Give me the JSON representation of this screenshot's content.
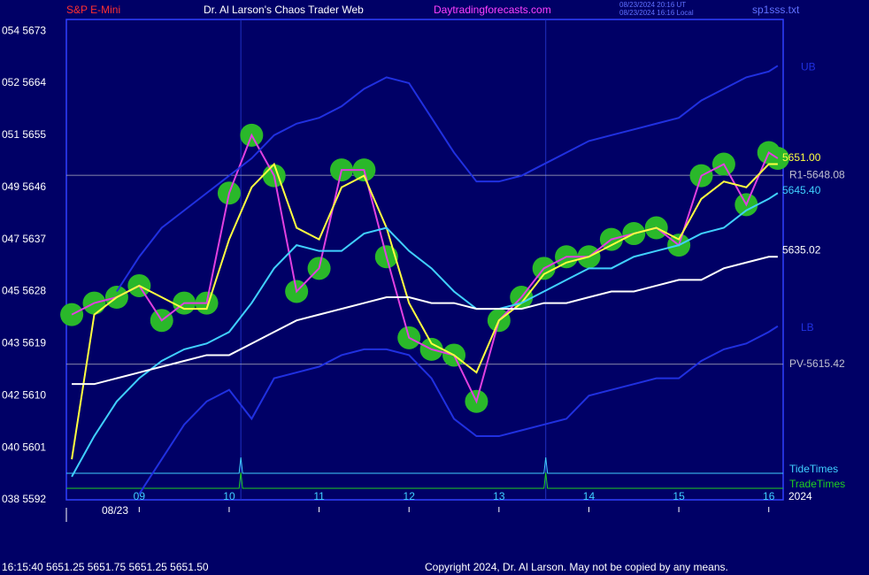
{
  "chart_data": {
    "type": "line",
    "header": {
      "symbol": "S&P E-Mini",
      "title": "Dr. Al Larson's Chaos Trader Web",
      "site": "Daytradingforecasts.com",
      "time_ut": "08/23/2024 20:16 UT",
      "time_local": "08/23/2024 16:16 Local",
      "file": "sp1sss.txt"
    },
    "footer": {
      "quote": "16:15:40  5651.25 5651.75 5651.25 5651.50",
      "copyright": "Copyright 2024, Dr. Al Larson. May not be copied by any means."
    },
    "date_label": "08/23",
    "year_label": "2024",
    "x": [
      8.25,
      8.5,
      8.75,
      9.0,
      9.25,
      9.5,
      9.75,
      10.0,
      10.25,
      10.5,
      10.75,
      11.0,
      11.25,
      11.5,
      11.75,
      12.0,
      12.25,
      12.5,
      12.75,
      13.0,
      13.25,
      13.5,
      13.75,
      14.0,
      14.25,
      14.5,
      14.75,
      15.0,
      15.25,
      15.5,
      15.75,
      16.0,
      16.1
    ],
    "xlim": [
      8.19,
      16.16
    ],
    "xticks": [
      {
        "value": 9,
        "label": "09"
      },
      10,
      11,
      12,
      13,
      14,
      15,
      16
    ],
    "ylim": [
      5592,
      5675
    ],
    "yticks": [
      {
        "value": 5673,
        "label": "054 5673"
      },
      {
        "value": 5664,
        "label": "052 5664"
      },
      {
        "value": 5655,
        "label": "051 5655"
      },
      {
        "value": 5646,
        "label": "049 5646"
      },
      {
        "value": 5637,
        "label": "047 5637"
      },
      {
        "value": 5628,
        "label": "045 5628"
      },
      {
        "value": 5619,
        "label": "043 5619"
      },
      {
        "value": 5610,
        "label": "042 5610"
      },
      {
        "value": 5601,
        "label": "040 5601"
      },
      {
        "value": 5592,
        "label": "038 5592"
      }
    ],
    "series": [
      {
        "color": "#2ab82a",
        "marker": "circle",
        "line_color": "#e040e0",
        "values": [
          5624,
          5626,
          5627,
          5629,
          5623,
          5626,
          5626,
          5645,
          5655,
          5648,
          5628,
          5632,
          5649,
          5649,
          5634,
          5620,
          5618,
          5617,
          5609,
          5623,
          5627,
          5632,
          5634,
          5634,
          5637,
          5638,
          5639,
          5636,
          5648,
          5650,
          5643,
          5652,
          5651
        ]
      },
      {
        "color": "#ffff40",
        "values": [
          5599,
          5624,
          5627,
          5629,
          5627,
          5625,
          5625,
          5637,
          5646,
          5650,
          5639,
          5637,
          5646,
          5648,
          5639,
          5626,
          5619,
          5617,
          5614,
          5623,
          5626,
          5631,
          5633,
          5634,
          5636,
          5638,
          5639,
          5637,
          5644,
          5647,
          5646,
          5650,
          5650
        ],
        "end_label": {
          "value": 5651.0,
          "label": "5651.00"
        }
      },
      {
        "color": "#40d0ff",
        "values": [
          5596,
          5603,
          5609,
          5613,
          5616,
          5618,
          5619,
          5621,
          5626,
          5632,
          5636,
          5635,
          5635,
          5638,
          5639,
          5635,
          5632,
          5628,
          5625,
          5625,
          5626,
          5628,
          5630,
          5632,
          5632,
          5634,
          5635,
          5636,
          5638,
          5639,
          5642,
          5644,
          5645
        ],
        "end_label": {
          "value": 5645.4,
          "label": "5645.40"
        }
      },
      {
        "color": "#ffffff",
        "values": [
          5612,
          5612,
          5613,
          5614,
          5615,
          5616,
          5617,
          5617,
          5619,
          5621,
          5623,
          5624,
          5625,
          5626,
          5627,
          5627,
          5626,
          5626,
          5625,
          5625,
          5625,
          5626,
          5626,
          5627,
          5628,
          5628,
          5629,
          5630,
          5630,
          5632,
          5633,
          5634,
          5634
        ],
        "end_label": {
          "value": 5635.02,
          "label": "5635.02"
        }
      },
      {
        "name": "UB",
        "color": "#2030e0",
        "values": [
          null,
          null,
          5628,
          5634,
          5639,
          5642,
          5645,
          5648,
          5651,
          5655,
          5657,
          5658,
          5660,
          5663,
          5665,
          5664,
          5658,
          5652,
          5647,
          5647,
          5648,
          5650,
          5652,
          5654,
          5655,
          5656,
          5657,
          5658,
          5661,
          5663,
          5665,
          5666,
          5667
        ]
      },
      {
        "name": "LB",
        "color": "#2030e0",
        "values": [
          null,
          null,
          null,
          5593,
          5599,
          5605,
          5609,
          5611,
          5606,
          5613,
          5614,
          5615,
          5617,
          5618,
          5618,
          5617,
          5613,
          5606,
          5603,
          5603,
          5604,
          5605,
          5606,
          5610,
          5611,
          5612,
          5613,
          5613,
          5616,
          5618,
          5619,
          5621,
          5622
        ]
      }
    ],
    "levels": [
      {
        "value": 5648.08,
        "label": "R1-5648.08"
      },
      {
        "value": 5615.42,
        "label": "PV-5615.42"
      }
    ],
    "events": [
      {
        "name": "TideTimes",
        "color": "#40d0ff",
        "x": [
          10.13,
          13.52
        ]
      },
      {
        "name": "TradeTimes",
        "color": "#20d020",
        "x": [
          10.13,
          13.52
        ]
      }
    ]
  }
}
